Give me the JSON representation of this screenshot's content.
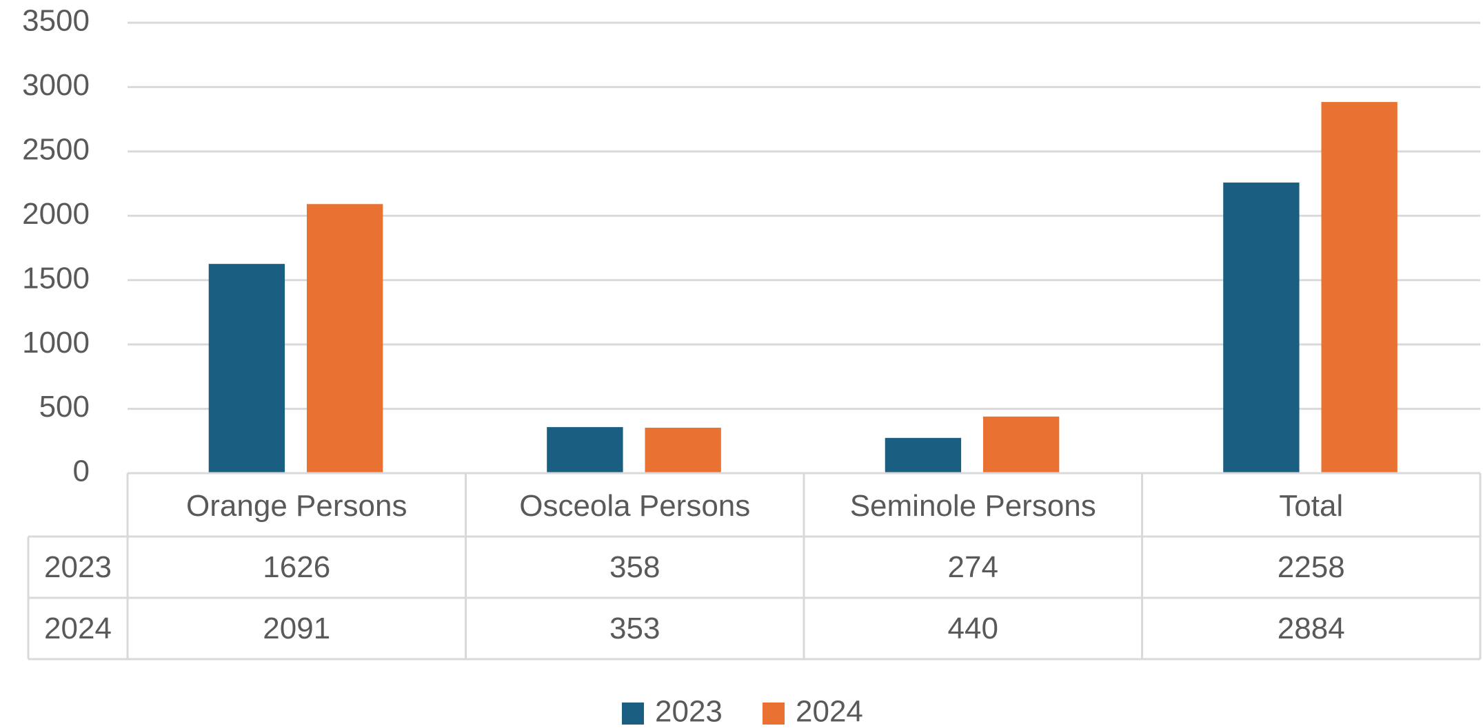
{
  "chart_data": {
    "type": "bar",
    "categories": [
      "Orange Persons",
      "Osceola Persons",
      "Seminole Persons",
      "Total"
    ],
    "series": [
      {
        "name": "2023",
        "color": "#1a5e82",
        "values": [
          1626,
          358,
          274,
          2258
        ]
      },
      {
        "name": "2024",
        "color": "#e97132",
        "values": [
          2091,
          353,
          440,
          2884
        ]
      }
    ],
    "ylim": [
      0,
      3500
    ],
    "yticks": [
      0,
      500,
      1000,
      1500,
      2000,
      2500,
      3000,
      3500
    ],
    "grid": true,
    "legend": "bottom"
  }
}
